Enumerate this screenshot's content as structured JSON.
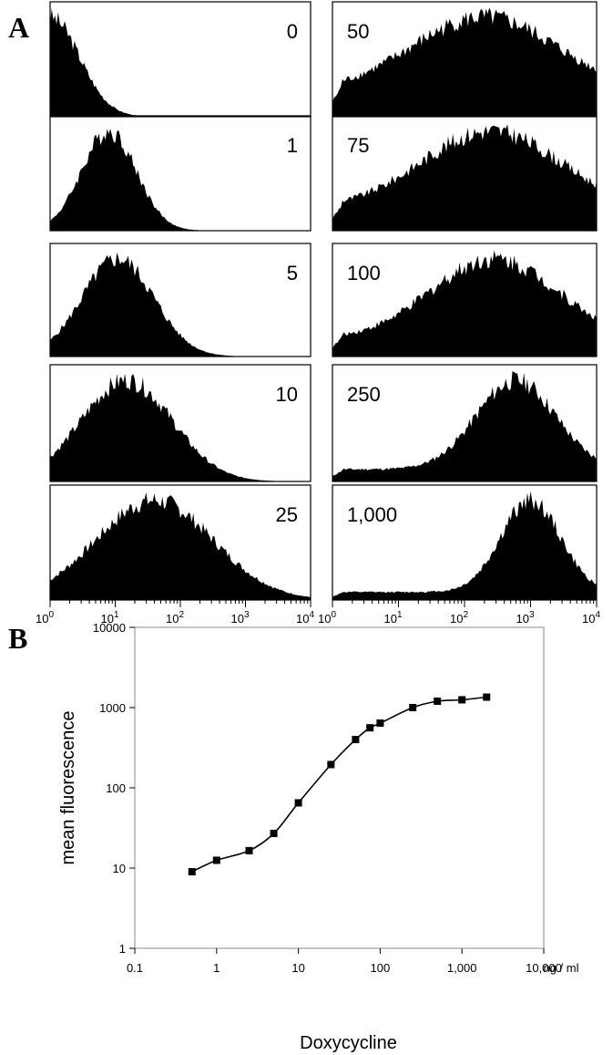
{
  "panel_a": {
    "letter": "A",
    "x_tick_labels": [
      {
        "base": "10",
        "exp": "0"
      },
      {
        "base": "10",
        "exp": "1"
      },
      {
        "base": "10",
        "exp": "2"
      },
      {
        "base": "10",
        "exp": "3"
      },
      {
        "base": "10",
        "exp": "4"
      }
    ]
  },
  "panel_b": {
    "letter": "B",
    "y_tick_labels": [
      "10000",
      "1000",
      "100",
      "10",
      "1"
    ],
    "x_tick_labels": [
      "0.1",
      "1",
      "10",
      "100",
      "1,000",
      "10,000"
    ],
    "unit_label": "ng / ml"
  },
  "chart_data": [
    {
      "type": "area",
      "description_role": "flow-cytometry histograms, panel A",
      "x_scale": "log",
      "xlim": [
        1,
        10000
      ],
      "histograms": [
        {
          "label": "0",
          "peak_x": 1.0,
          "width_decades": 0.45,
          "floor": 0.0
        },
        {
          "label": "1",
          "peak_x": 8,
          "width_decades": 0.42,
          "floor": 0.0
        },
        {
          "label": "5",
          "peak_x": 11,
          "width_decades": 0.55,
          "floor": 0.0
        },
        {
          "label": "10",
          "peak_x": 15,
          "width_decades": 0.7,
          "floor": 0.0
        },
        {
          "label": "25",
          "peak_x": 40,
          "width_decades": 0.9,
          "floor": 0.0
        },
        {
          "label": "50",
          "peak_x": 200,
          "width_decades": 1.1,
          "floor": 0.25
        },
        {
          "label": "75",
          "peak_x": 250,
          "width_decades": 1.05,
          "floor": 0.22
        },
        {
          "label": "100",
          "peak_x": 280,
          "width_decades": 0.95,
          "floor": 0.18
        },
        {
          "label": "250",
          "peak_x": 600,
          "width_decades": 0.6,
          "floor": 0.12
        },
        {
          "label": "1,000",
          "peak_x": 1000,
          "width_decades": 0.45,
          "floor": 0.08
        }
      ]
    },
    {
      "type": "line",
      "description_role": "dose-response, panel B",
      "x_scale": "log",
      "y_scale": "log",
      "xlim": [
        0.1,
        10000
      ],
      "ylim": [
        1,
        10000
      ],
      "xlabel": "Doxycycline",
      "ylabel": "mean fluorescence",
      "x": [
        0.5,
        1,
        2.5,
        5,
        10,
        25,
        50,
        75,
        100,
        250,
        500,
        1000,
        2000
      ],
      "y": [
        9,
        12.5,
        16.5,
        27,
        65,
        195,
        400,
        560,
        640,
        1000,
        1200,
        1250,
        1350
      ]
    }
  ]
}
